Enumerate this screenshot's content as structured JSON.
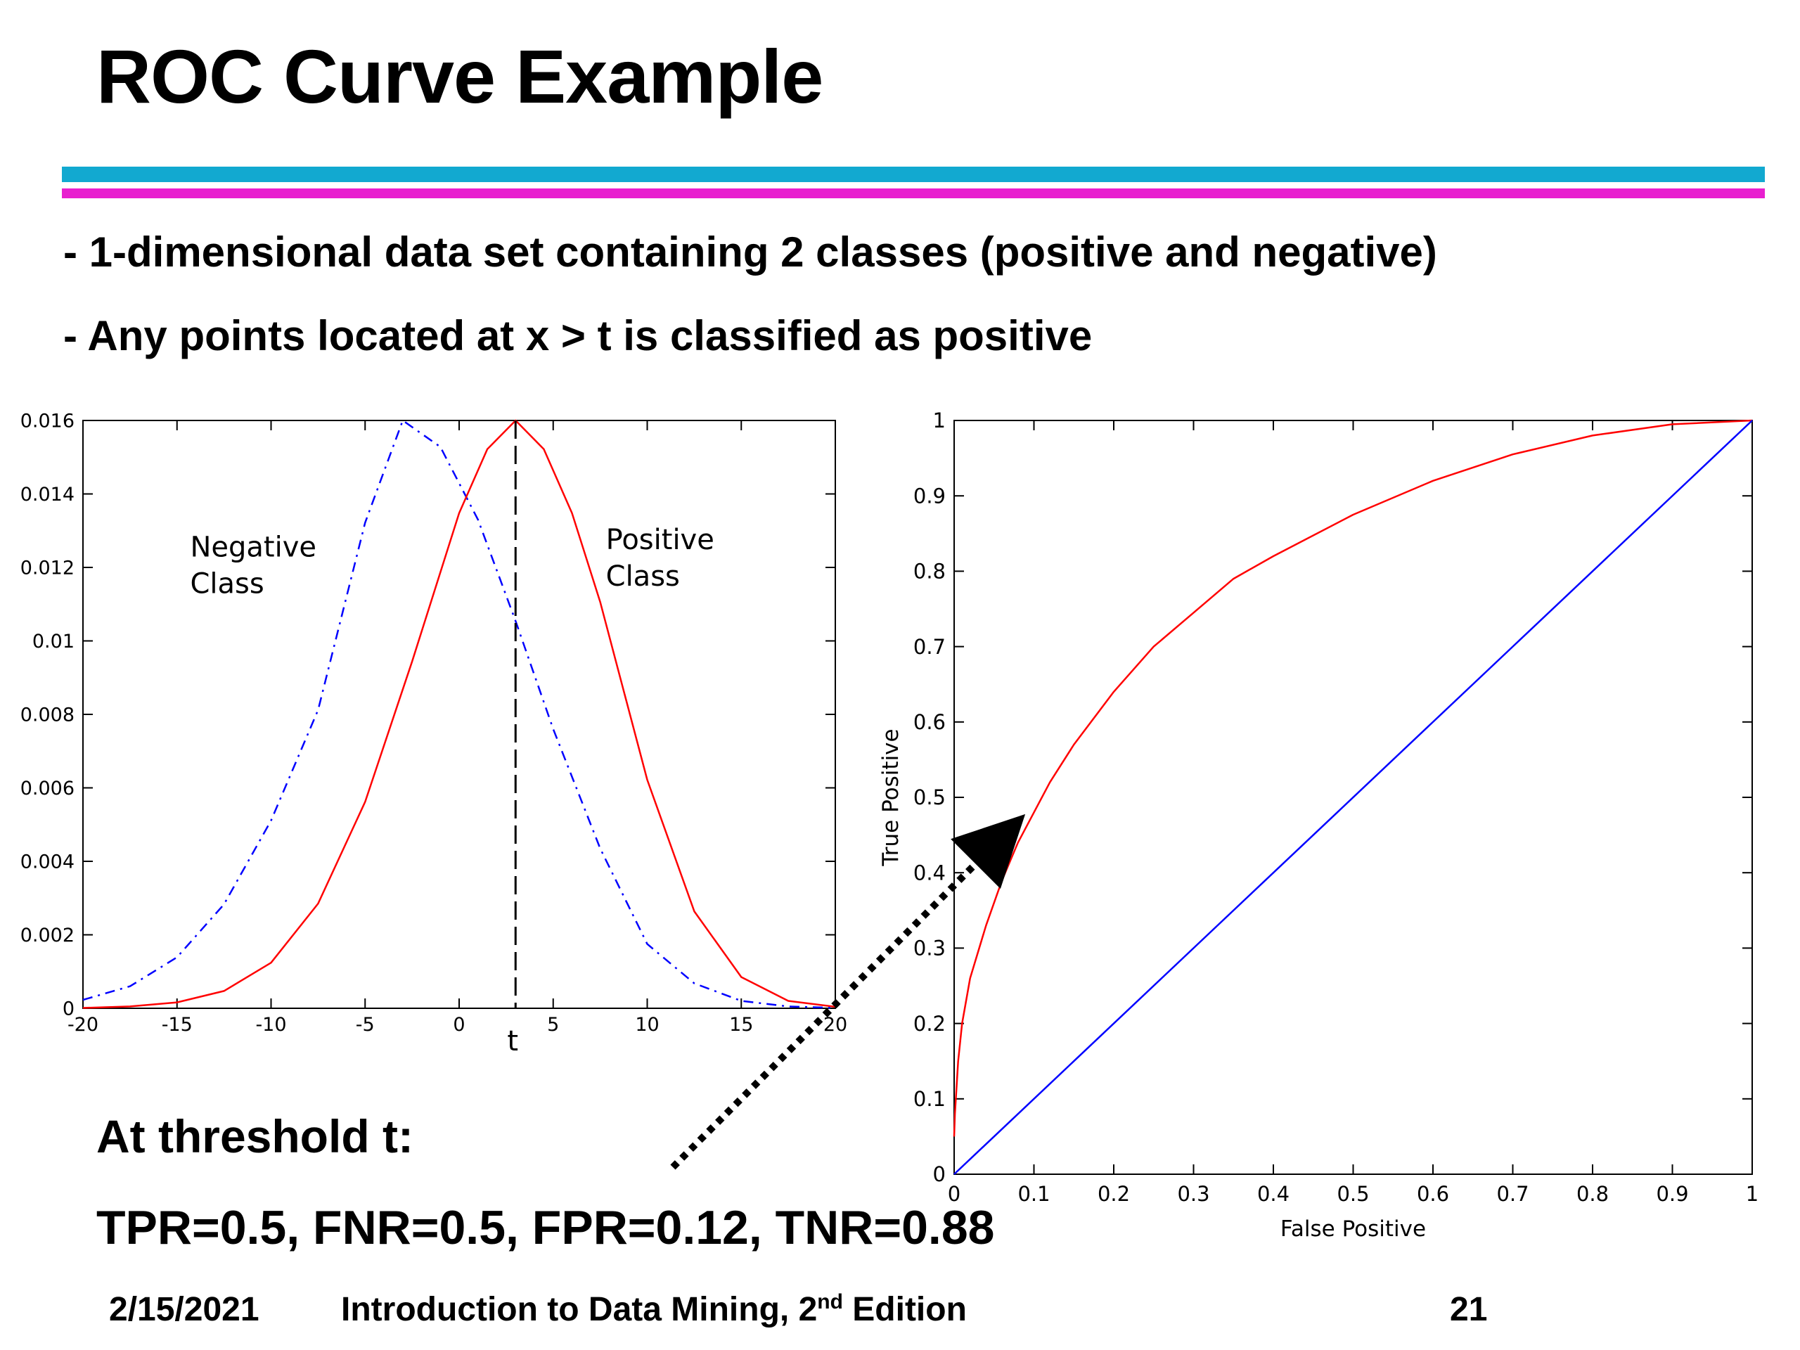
{
  "slide": {
    "title": "ROC Curve Example",
    "bullets": [
      "- 1-dimensional data set containing 2 classes (positive and negative)",
      "- Any points located at x > t is classified as positive"
    ],
    "summary_heading": "At threshold t:",
    "summary_metrics": "TPR=0.5, FNR=0.5, FPR=0.12, TNR=0.88",
    "footer": {
      "date": "2/15/2021",
      "title": "Introduction to Data Mining, 2",
      "title_sup": "nd",
      "title_tail": " Edition",
      "page": "21"
    },
    "colors": {
      "rule_top": "#12a9d0",
      "rule_bottom": "#e81fcf",
      "negative_curve": "#0000ff",
      "positive_curve": "#ff0000",
      "diagonal": "#0000ff"
    }
  },
  "chart_data": [
    {
      "type": "line",
      "title": "",
      "xlabel": "",
      "ylabel": "",
      "xlim": [
        -20,
        20
      ],
      "ylim": [
        0,
        0.016
      ],
      "xticks": [
        "-20",
        "-15",
        "-10",
        "-5",
        "0",
        "5",
        "10",
        "15",
        "20"
      ],
      "yticks": [
        "0",
        "0.002",
        "0.004",
        "0.006",
        "0.008",
        "0.01",
        "0.012",
        "0.014",
        "0.016"
      ],
      "grid": false,
      "series": [
        {
          "name": "Negative Class",
          "style": "dash-dot",
          "color": "#0000ff",
          "x": [
            -20,
            -17.5,
            -15,
            -12.5,
            -10,
            -7.5,
            -5,
            -3,
            -1,
            1,
            3,
            5,
            7.5,
            10,
            12.5,
            15,
            17.5,
            20
          ],
          "values": [
            0.00023,
            0.0006,
            0.00139,
            0.00283,
            0.00511,
            0.00812,
            0.01322,
            0.016,
            0.01528,
            0.0133,
            0.01054,
            0.0076,
            0.00435,
            0.00175,
            0.00068,
            0.0002,
            5e-05,
            1e-05
          ]
        },
        {
          "name": "Positive Class",
          "style": "solid",
          "color": "#ff0000",
          "x": [
            -20,
            -17.5,
            -15,
            -12.5,
            -10,
            -7.5,
            -5,
            -2.5,
            0,
            1.5,
            3,
            4.5,
            6,
            7.5,
            10,
            12.5,
            15,
            17.5,
            20
          ],
          "values": [
            1e-05,
            5e-05,
            0.00016,
            0.00047,
            0.00124,
            0.00285,
            0.00562,
            0.00944,
            0.01348,
            0.01522,
            0.016,
            0.01522,
            0.01348,
            0.01106,
            0.00622,
            0.00264,
            0.00085,
            0.0002,
            4e-05
          ]
        }
      ],
      "annotations": [
        {
          "text": "Negative",
          "x": -14.3,
          "y": 0.0123
        },
        {
          "text": "Class",
          "x": -14.3,
          "y": 0.0113
        },
        {
          "text": "Positive",
          "x": 7.8,
          "y": 0.0125
        },
        {
          "text": "Class",
          "x": 7.8,
          "y": 0.0115
        }
      ],
      "threshold": {
        "x": 3,
        "label": "t"
      }
    },
    {
      "type": "line",
      "title": "",
      "xlabel": "False Positive",
      "ylabel": "True Positive",
      "xlim": [
        0,
        1
      ],
      "ylim": [
        0,
        1
      ],
      "xticks": [
        "0",
        "0.1",
        "0.2",
        "0.3",
        "0.4",
        "0.5",
        "0.6",
        "0.7",
        "0.8",
        "0.9",
        "1"
      ],
      "yticks": [
        "0",
        "0.1",
        "0.2",
        "0.3",
        "0.4",
        "0.5",
        "0.6",
        "0.7",
        "0.8",
        "0.9",
        "1"
      ],
      "grid": false,
      "series": [
        {
          "name": "",
          "color": "#ff0000",
          "x": [
            0,
            0.001,
            0.005,
            0.01,
            0.02,
            0.04,
            0.06,
            0.08,
            0.1,
            0.12,
            0.15,
            0.2,
            0.25,
            0.3,
            0.35,
            0.4,
            0.5,
            0.6,
            0.7,
            0.8,
            0.9,
            1
          ],
          "values": [
            0.05,
            0.08,
            0.15,
            0.2,
            0.26,
            0.33,
            0.39,
            0.44,
            0.48,
            0.52,
            0.57,
            0.64,
            0.7,
            0.745,
            0.79,
            0.82,
            0.875,
            0.92,
            0.955,
            0.98,
            0.995,
            1
          ]
        },
        {
          "name": "",
          "color": "#0000ff",
          "x": [
            0,
            1
          ],
          "values": [
            0,
            1
          ]
        }
      ]
    }
  ]
}
